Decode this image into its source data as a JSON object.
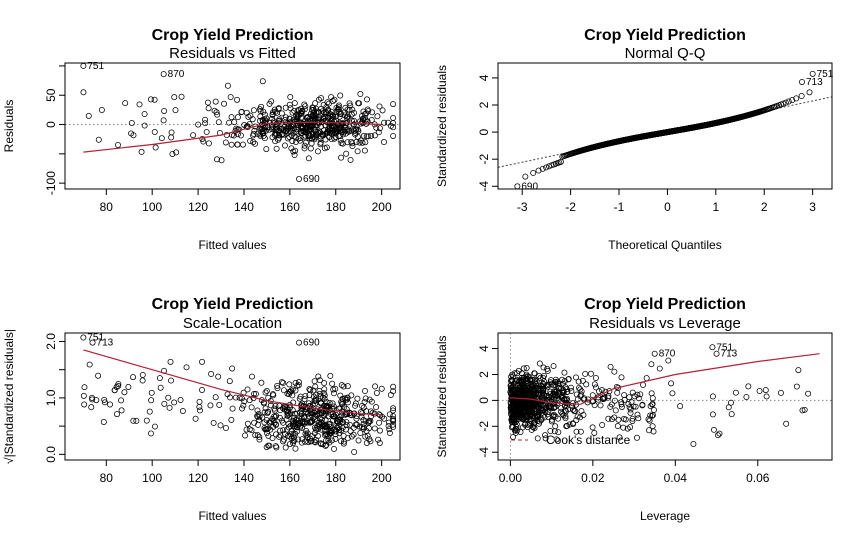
{
  "chart_data": [
    {
      "id": "rvf",
      "type": "scatter",
      "title": "Crop Yield Prediction",
      "subtitle": "Residuals vs Fitted",
      "xlabel": "Fitted values",
      "ylabel": "Residuals",
      "xlim": [
        62,
        208
      ],
      "ylim": [
        -110,
        105
      ],
      "xticks": [
        80,
        100,
        120,
        140,
        160,
        180,
        200
      ],
      "yticks": [
        -100,
        -50,
        0,
        50,
        100
      ],
      "ytick_labels": [
        "-100",
        "",
        "0",
        "50",
        ""
      ],
      "refline": {
        "y": 0,
        "style": "dotted"
      },
      "smooth": {
        "x": [
          70,
          100,
          130,
          150,
          170,
          190,
          200
        ],
        "y": [
          -47,
          -34,
          -18,
          2,
          4,
          2,
          0
        ]
      },
      "annotations": [
        {
          "label": "751",
          "x": 70,
          "y": 100
        },
        {
          "label": "870",
          "x": 105,
          "y": 86
        },
        {
          "label": "690",
          "x": 164,
          "y": -93
        }
      ],
      "cloud": {
        "seed": 11,
        "n": 560,
        "xmin": 95,
        "xmax": 205,
        "xmode": 170,
        "yscale": 22,
        "trend": true
      }
    },
    {
      "id": "qq",
      "type": "scatter",
      "title": "Crop Yield Prediction",
      "subtitle": "Normal Q-Q",
      "xlabel": "Theoretical Quantiles",
      "ylabel": "Standardized residuals",
      "xlim": [
        -3.5,
        3.4
      ],
      "ylim": [
        -4.2,
        5.1
      ],
      "xticks": [
        -3,
        -2,
        -1,
        0,
        1,
        2,
        3
      ],
      "yticks": [
        -4,
        -2,
        0,
        2,
        4
      ],
      "ytick_labels": [
        "-4",
        "-2",
        "0",
        "2",
        "4"
      ],
      "refline": {
        "x1": -3.5,
        "y1": -2.6,
        "x2": 3.4,
        "y2": 2.6,
        "style": "dotted"
      },
      "annotations": [
        {
          "label": "751",
          "x": 3.0,
          "y": 4.3
        },
        {
          "label": "713",
          "x": 2.78,
          "y": 3.7
        },
        {
          "label": "690",
          "x": -3.1,
          "y": -4.0
        }
      ],
      "qq": {
        "n": 900,
        "xmin": -3.25,
        "xmax": 3.25
      }
    },
    {
      "id": "sl",
      "type": "scatter",
      "title": "Crop Yield Prediction",
      "subtitle": "Scale-Location",
      "xlabel": "Fitted values",
      "ylabel": "√|Standardized residuals|",
      "xlim": [
        62,
        208
      ],
      "ylim": [
        -0.1,
        2.15
      ],
      "xticks": [
        80,
        100,
        120,
        140,
        160,
        180,
        200
      ],
      "yticks": [
        0.0,
        0.5,
        1.0,
        1.5,
        2.0
      ],
      "ytick_labels": [
        "0.0",
        "",
        "1.0",
        "",
        "2.0"
      ],
      "smooth": {
        "x": [
          70,
          100,
          130,
          150,
          170,
          190,
          200
        ],
        "y": [
          1.85,
          1.5,
          1.15,
          0.95,
          0.82,
          0.72,
          0.7
        ]
      },
      "annotations": [
        {
          "label": "751",
          "x": 70,
          "y": 2.07
        },
        {
          "label": "713",
          "x": 74,
          "y": 1.98
        },
        {
          "label": "690",
          "x": 164,
          "y": 1.98
        }
      ],
      "cloud": {
        "seed": 23,
        "n": 560,
        "xmin": 95,
        "xmax": 205,
        "xmode": 170,
        "yscale": 0.55,
        "abs": true
      }
    },
    {
      "id": "rvl",
      "type": "scatter",
      "title": "Crop Yield Prediction",
      "subtitle": "Residuals vs Leverage",
      "xlabel": "Leverage",
      "ylabel": "Standardized residuals",
      "xlim": [
        -0.003,
        0.078
      ],
      "ylim": [
        -4.6,
        5.2
      ],
      "xticks": [
        0.0,
        0.02,
        0.04,
        0.06
      ],
      "xtick_labels": [
        "0.00",
        "0.02",
        "0.04",
        "0.06"
      ],
      "yticks": [
        -4,
        -2,
        0,
        2,
        4
      ],
      "ytick_labels": [
        "-4",
        "-2",
        "0",
        "2",
        "4"
      ],
      "refline": {
        "y": 0,
        "style": "dotted"
      },
      "vline": {
        "x": 0
      },
      "smooth": {
        "x": [
          0.0,
          0.005,
          0.01,
          0.017,
          0.025,
          0.04,
          0.06,
          0.075
        ],
        "y": [
          0.2,
          0.1,
          -0.2,
          -0.3,
          0.9,
          2.0,
          3.0,
          3.6
        ]
      },
      "annotations": [
        {
          "label": "870",
          "x": 0.035,
          "y": 3.6
        },
        {
          "label": "751",
          "x": 0.049,
          "y": 4.1
        },
        {
          "label": "713",
          "x": 0.05,
          "y": 3.6
        }
      ],
      "legend": {
        "label": "Cook's distance",
        "position": "bottom-left"
      },
      "lev": {
        "seed": 37,
        "n": 820
      }
    }
  ]
}
